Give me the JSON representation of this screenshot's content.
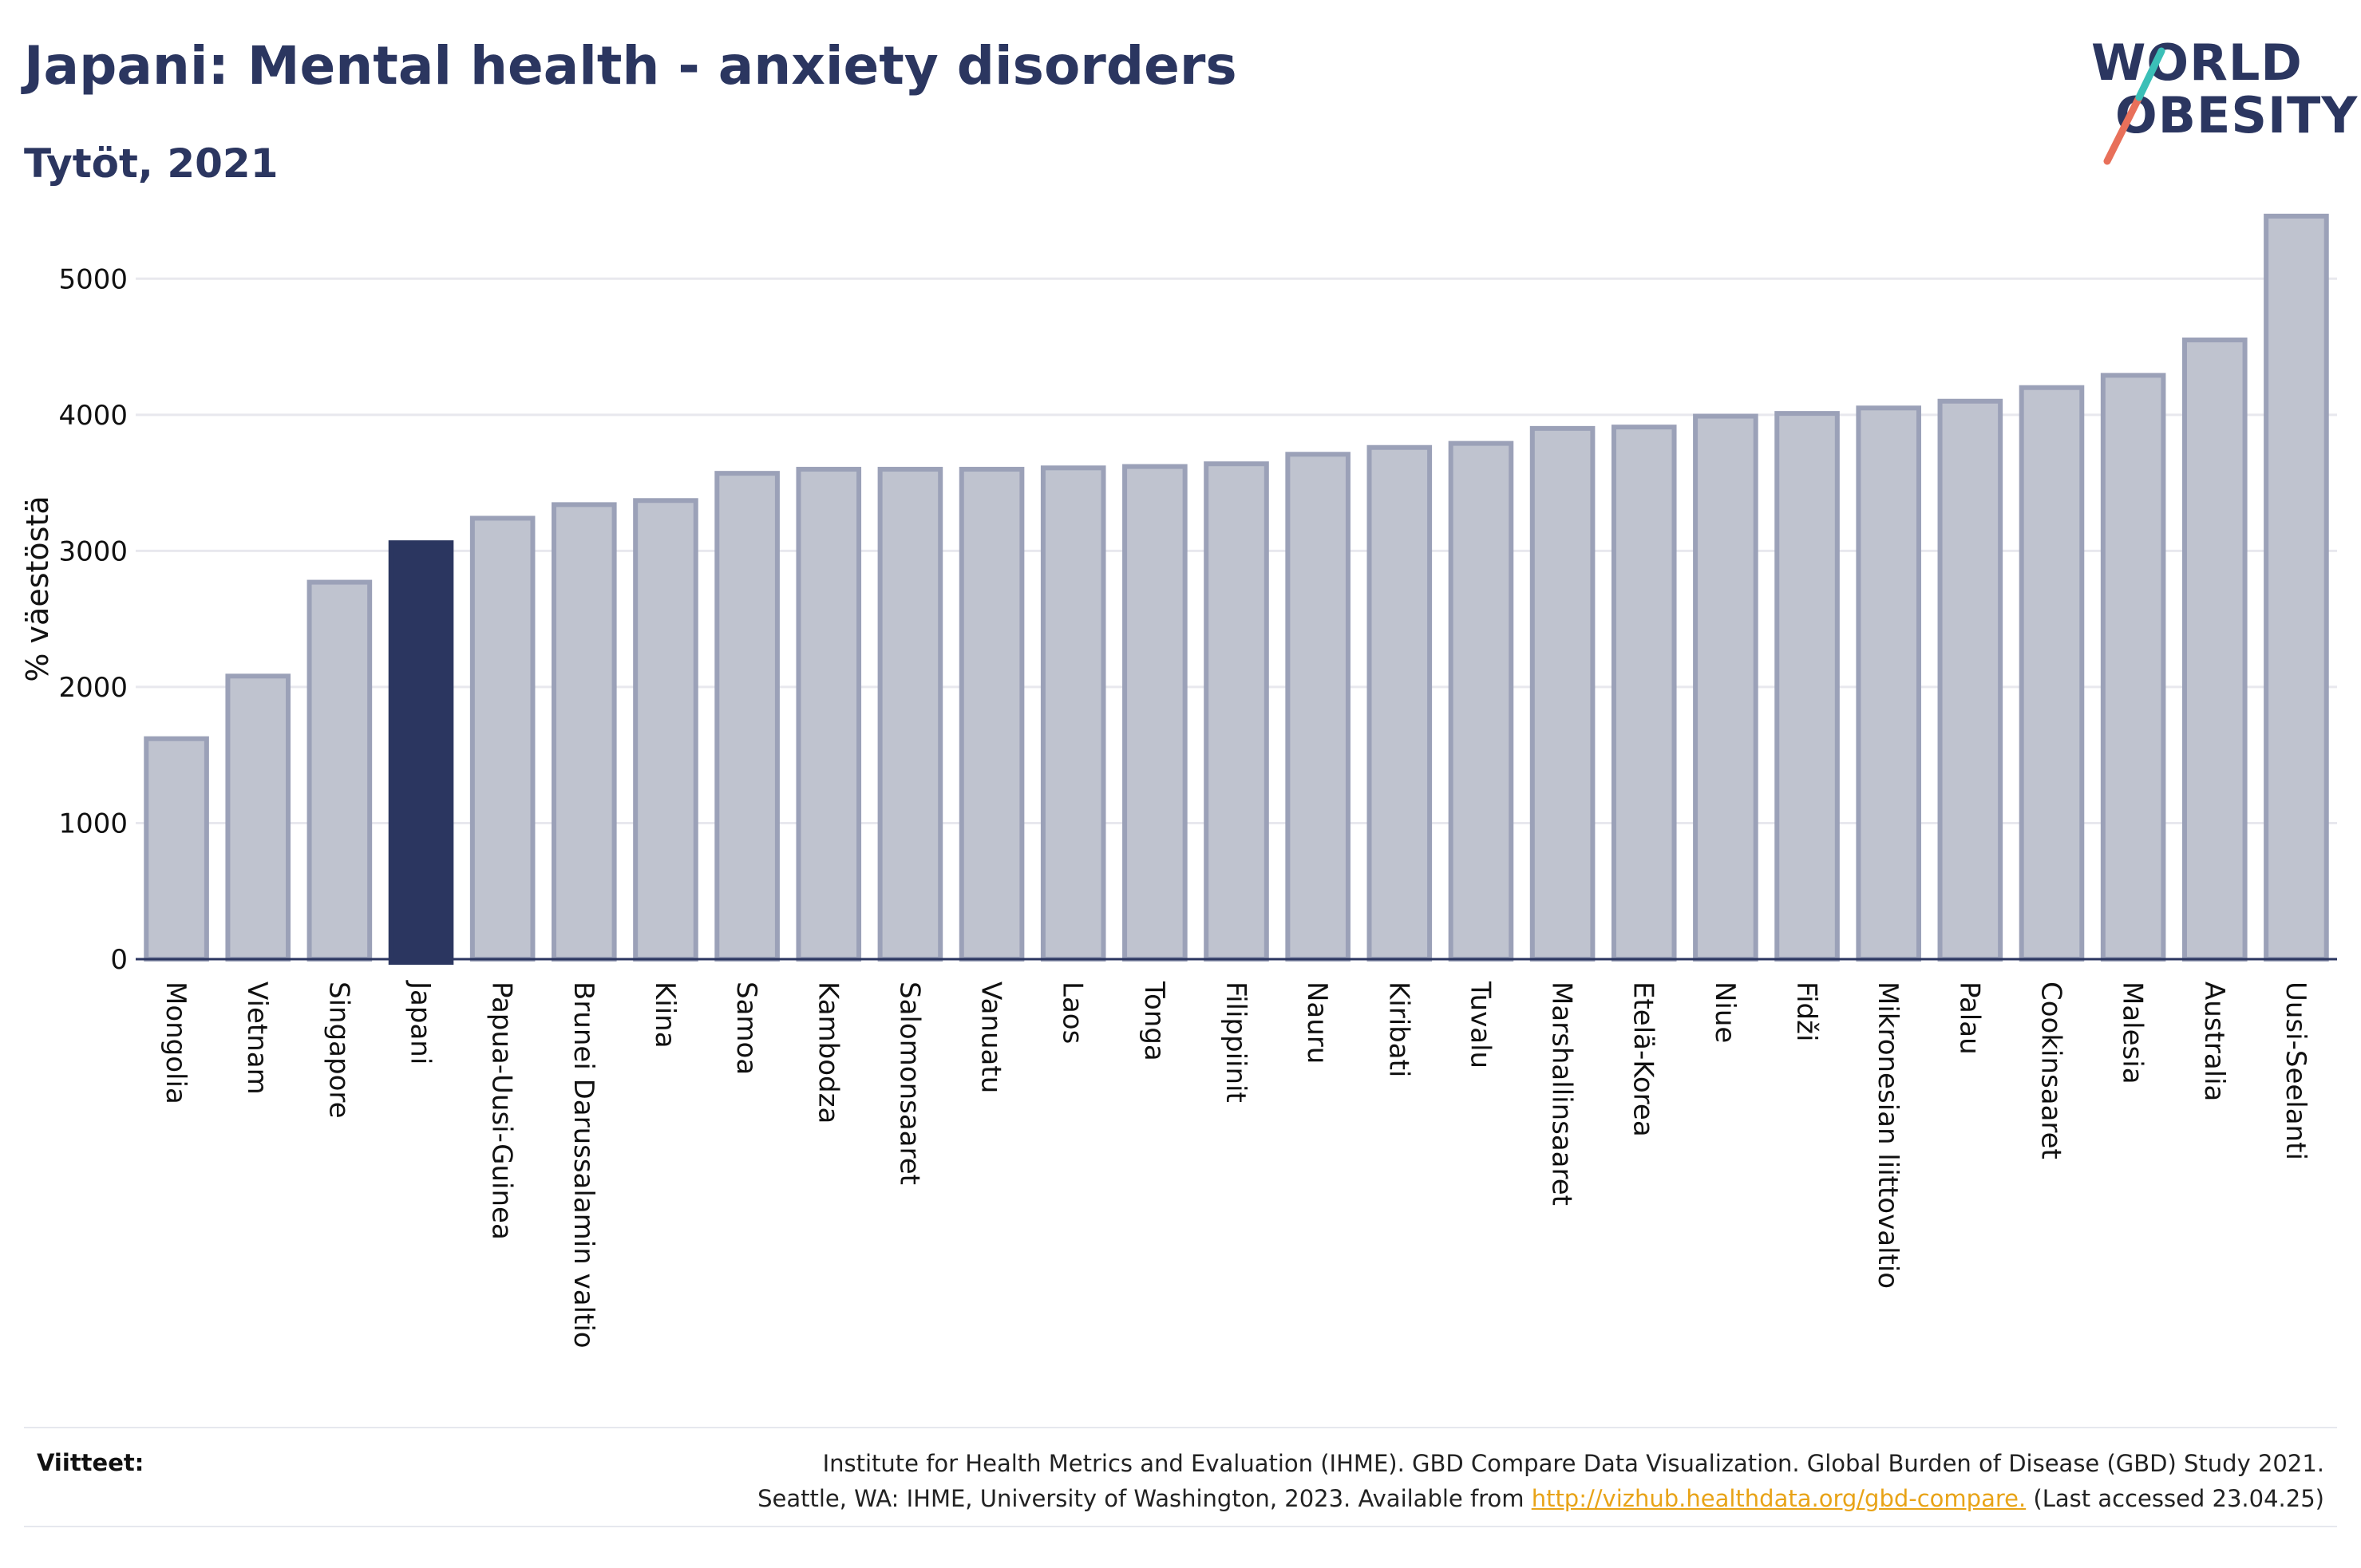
{
  "header": {
    "title": "Japani: Mental health - anxiety disorders",
    "subtitle": "Tytöt, 2021"
  },
  "logo": {
    "line1": "WORLD",
    "line2": "OBESITY",
    "slash_color": "#e8705a",
    "accent_color": "#3bbfb7"
  },
  "chart_data": {
    "type": "bar",
    "title": "Japani: Mental health - anxiety disorders",
    "subtitle": "Tytöt, 2021",
    "ylabel": "% väestöstä",
    "xlabel": "",
    "ylim": [
      0,
      5500
    ],
    "yticks": [
      0,
      1000,
      2000,
      3000,
      4000,
      5000
    ],
    "grid": true,
    "categories": [
      "Mongolia",
      "Vietnam",
      "Singapore",
      "Japani",
      "Papua-Uusi-Guinea",
      "Brunei Darussalamin valtio",
      "Kiina",
      "Samoa",
      "Kambodza",
      "Salomonsaaret",
      "Vanuatu",
      "Laos",
      "Tonga",
      "Filippiinit",
      "Nauru",
      "Kiribati",
      "Tuvalu",
      "Marshallinsaaret",
      "Etelä-Korea",
      "Niue",
      "Fidži",
      "Mikronesian liittovaltio",
      "Palau",
      "Cookinsaaret",
      "Malesia",
      "Australia",
      "Uusi-Seelanti"
    ],
    "values": [
      1620,
      2080,
      2770,
      3060,
      3240,
      3340,
      3370,
      3570,
      3600,
      3600,
      3600,
      3610,
      3620,
      3640,
      3710,
      3760,
      3790,
      3900,
      3910,
      3990,
      4010,
      4050,
      4100,
      4200,
      4290,
      4550,
      5460
    ],
    "highlight": "Japani",
    "colors": {
      "bar": "#bfc3cf",
      "bar_edge": "#9ba1b8",
      "highlight": "#2b3660",
      "grid": "#e8e8ee",
      "axis": "#2b3660"
    }
  },
  "footer": {
    "ref_label": "Viitteet:",
    "ref_line1": "Institute for Health Metrics and Evaluation (IHME). GBD Compare Data Visualization. Global Burden of Disease (GBD) Study 2021.",
    "ref_line2_pre": "Seattle, WA: IHME, University of Washington, 2023. Available from ",
    "ref_link": "http://vizhub.healthdata.org/gbd-compare.",
    "ref_line2_post": " (Last accessed 23.04.25)"
  }
}
